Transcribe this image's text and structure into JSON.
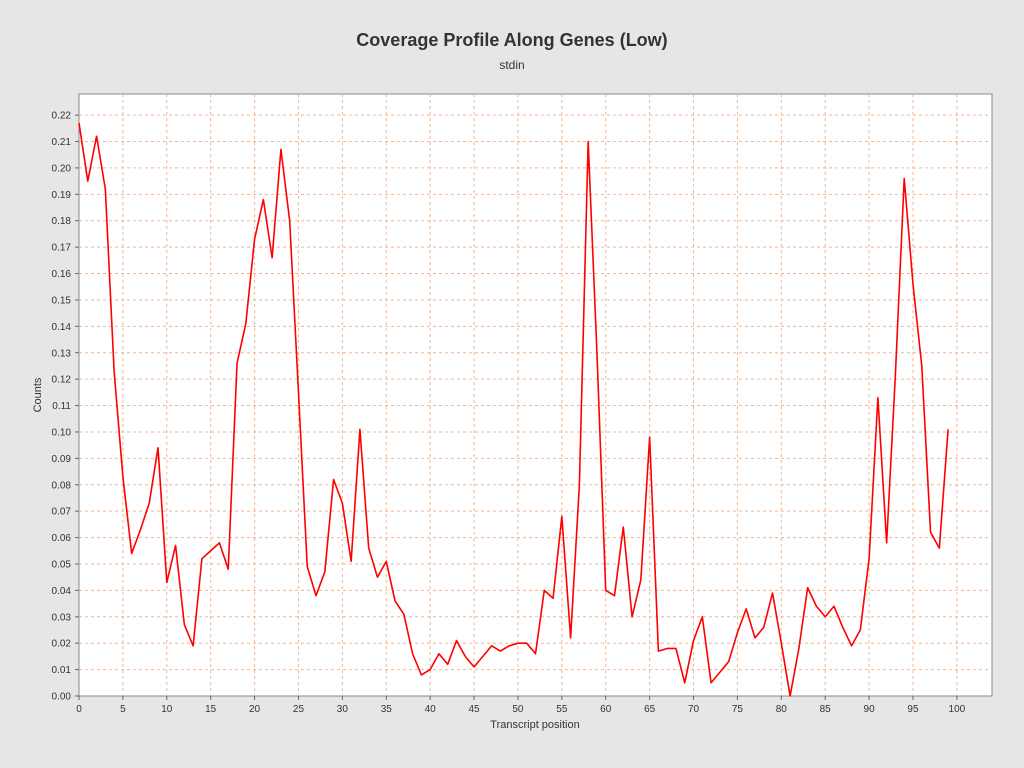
{
  "chart_data": {
    "type": "line",
    "title": "Coverage Profile Along Genes (Low)",
    "subtitle": "stdin",
    "xlabel": "Transcript position",
    "ylabel": "Counts",
    "xlim": [
      0,
      104
    ],
    "ylim": [
      0,
      0.228
    ],
    "grid": true,
    "x_ticks": [
      0,
      5,
      10,
      15,
      20,
      25,
      30,
      35,
      40,
      45,
      50,
      55,
      60,
      65,
      70,
      75,
      80,
      85,
      90,
      95,
      100
    ],
    "y_ticks": [
      0.0,
      0.01,
      0.02,
      0.03,
      0.04,
      0.05,
      0.06,
      0.07,
      0.08,
      0.09,
      0.1,
      0.11,
      0.12,
      0.13,
      0.14,
      0.15,
      0.16,
      0.17,
      0.18,
      0.19,
      0.2,
      0.21,
      0.22
    ],
    "y_tick_labels": [
      "0.00",
      "0.01",
      "0.02",
      "0.03",
      "0.04",
      "0.05",
      "0.06",
      "0.07",
      "0.08",
      "0.09",
      "0.10",
      "0.11",
      "0.12",
      "0.13",
      "0.14",
      "0.15",
      "0.16",
      "0.17",
      "0.18",
      "0.19",
      "0.20",
      "0.21",
      "0.22"
    ],
    "colors": {
      "line": "#ff0000",
      "grid": "#f0b890",
      "plot_bg": "#ffffff",
      "page_bg": "#e6e6e6"
    },
    "series": [
      {
        "x": [
          0,
          1,
          2,
          3,
          4,
          5,
          6,
          7,
          8,
          9,
          10,
          11,
          12,
          13,
          14,
          15,
          16,
          17,
          18,
          19,
          20,
          21,
          22,
          23,
          24,
          25,
          26,
          27,
          28,
          29,
          30,
          31,
          32,
          33,
          34,
          35,
          36,
          37,
          38,
          39,
          40,
          41,
          42,
          43,
          44,
          45,
          46,
          47,
          48,
          49,
          50,
          51,
          52,
          53,
          54,
          55,
          56,
          57,
          58,
          59,
          60,
          61,
          62,
          63,
          64,
          65,
          66,
          67,
          68,
          69,
          70,
          71,
          72,
          73,
          74,
          75,
          76,
          77,
          78,
          79,
          80,
          81,
          82,
          83,
          84,
          85,
          86,
          87,
          88,
          89,
          90,
          91,
          92,
          93,
          94,
          95,
          96,
          97,
          98,
          99
        ],
        "values": [
          0.217,
          0.195,
          0.212,
          0.192,
          0.123,
          0.083,
          0.054,
          0.063,
          0.073,
          0.094,
          0.043,
          0.057,
          0.027,
          0.019,
          0.052,
          0.055,
          0.058,
          0.048,
          0.126,
          0.141,
          0.173,
          0.188,
          0.166,
          0.207,
          0.18,
          0.115,
          0.049,
          0.038,
          0.047,
          0.082,
          0.073,
          0.051,
          0.101,
          0.056,
          0.045,
          0.051,
          0.036,
          0.031,
          0.016,
          0.008,
          0.01,
          0.016,
          0.012,
          0.021,
          0.015,
          0.011,
          0.015,
          0.019,
          0.017,
          0.019,
          0.02,
          0.02,
          0.016,
          0.04,
          0.037,
          0.068,
          0.022,
          0.08,
          0.21,
          0.13,
          0.04,
          0.038,
          0.064,
          0.03,
          0.044,
          0.098,
          0.017,
          0.018,
          0.018,
          0.005,
          0.021,
          0.03,
          0.005,
          0.009,
          0.013,
          0.024,
          0.033,
          0.022,
          0.026,
          0.039,
          0.02,
          0.0,
          0.018,
          0.041,
          0.034,
          0.03,
          0.034,
          0.026,
          0.019,
          0.025,
          0.052,
          0.113,
          0.058,
          0.122,
          0.196,
          0.156,
          0.125,
          0.062,
          0.056,
          0.101
        ]
      }
    ]
  }
}
